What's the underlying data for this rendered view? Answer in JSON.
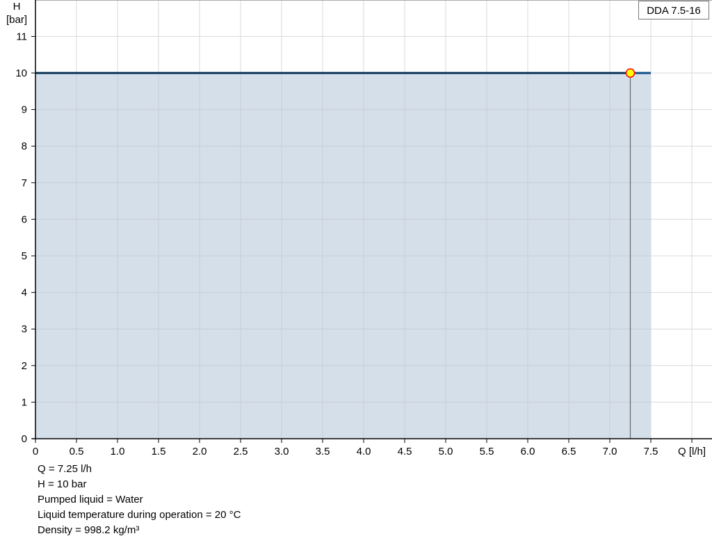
{
  "chart_data": {
    "type": "area",
    "legend": "DDA 7.5-16",
    "legend_position": "top-right",
    "xlabel": "Q [l/h]",
    "ylabel_line1": "H",
    "ylabel_line2": "[bar]",
    "xlim": [
      0,
      8
    ],
    "ylim": [
      0,
      12
    ],
    "x_ticks": [
      "0",
      "0.5",
      "1.0",
      "1.5",
      "2.0",
      "2.5",
      "3.0",
      "3.5",
      "4.0",
      "4.5",
      "5.0",
      "5.5",
      "6.0",
      "6.5",
      "7.0",
      "7.5"
    ],
    "y_ticks": [
      "0",
      "1",
      "2",
      "3",
      "4",
      "5",
      "6",
      "7",
      "8",
      "9",
      "10",
      "11"
    ],
    "grid": true,
    "series": [
      {
        "x": [
          0,
          7.5
        ],
        "y": [
          10,
          10
        ],
        "color": "#0d4f85",
        "fill": "#d0dce8"
      }
    ],
    "duty_point": {
      "x": 7.25,
      "y": 10,
      "fill": "#ffff00",
      "stroke": "#ff0000"
    }
  },
  "info": {
    "lines": [
      "Q = 7.25 l/h",
      "H = 10 bar",
      "Pumped liquid = Water",
      "Liquid temperature during operation = 20 °C",
      "Density = 998.2 kg/m³"
    ]
  }
}
